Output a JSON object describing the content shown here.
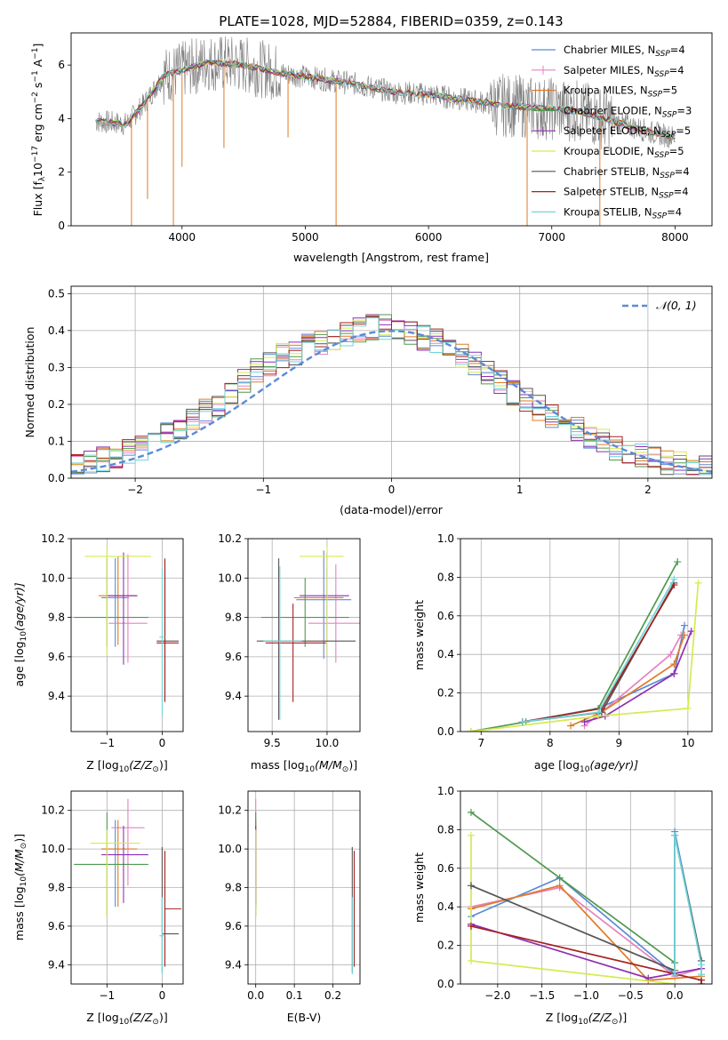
{
  "figure": {
    "title": "PLATE=1028, MJD=52884, FIBERID=0359, z=0.143"
  },
  "models": [
    {
      "name": "Chabrier MILES",
      "nssp": "4",
      "color": "#5b8bd6"
    },
    {
      "name": "Salpeter MILES",
      "nssp": "4",
      "color": "#e583c0"
    },
    {
      "name": "Kroupa MILES",
      "nssp": "5",
      "color": "#e07b24"
    },
    {
      "name": "Chabrier ELODIE",
      "nssp": "3",
      "color": "#4f9a4f"
    },
    {
      "name": "Salpeter ELODIE",
      "nssp": "5",
      "color": "#8e2fb3"
    },
    {
      "name": "Kroupa ELODIE",
      "nssp": "5",
      "color": "#d5ea52"
    },
    {
      "name": "Chabrier STELIB",
      "nssp": "4",
      "color": "#555555"
    },
    {
      "name": "Salpeter STELIB",
      "nssp": "4",
      "color": "#a52121"
    },
    {
      "name": "Kroupa STELIB",
      "nssp": "4",
      "color": "#6fd6d6"
    }
  ],
  "chart_data": [
    {
      "id": "spectrum",
      "type": "line",
      "xlabel": "wavelength [Angstrom, rest frame]",
      "ylabel_main": "Flux [f",
      "ylabel_sub": "λ",
      "ylabel_rest": "10",
      "ylabel_exp": "−17",
      "ylabel_unit": " erg cm",
      "ylabel_exp2": "−2",
      "ylabel_s": " s",
      "ylabel_exp3": "−1",
      "ylabel_A": " A",
      "ylabel_exp4": "−1",
      "ylabel_close": "]",
      "xlim": [
        3100,
        8300
      ],
      "ylim": [
        0,
        7.2
      ],
      "xticks": [
        4000,
        5000,
        6000,
        7000,
        8000
      ],
      "yticks": [
        0,
        2,
        4,
        6
      ],
      "legend_position": "right",
      "continuum_x": [
        3300,
        3550,
        3700,
        3850,
        4000,
        4200,
        4500,
        4800,
        5100,
        5400,
        5700,
        6000,
        6300,
        6600,
        6900,
        7200,
        7500,
        7800,
        8000
      ],
      "continuum_y": [
        3.9,
        3.8,
        4.6,
        5.6,
        5.8,
        6.1,
        6.0,
        5.7,
        5.5,
        5.3,
        5.0,
        4.9,
        4.7,
        4.5,
        4.4,
        4.3,
        3.9,
        3.5,
        3.3
      ],
      "absorption_lines": [
        {
          "x": 3590,
          "y": 0.0
        },
        {
          "x": 3720,
          "y": 1.0
        },
        {
          "x": 3930,
          "y": 0.0
        },
        {
          "x": 4000,
          "y": 2.2
        },
        {
          "x": 4340,
          "y": 2.9
        },
        {
          "x": 4860,
          "y": 3.3
        },
        {
          "x": 5250,
          "y": 0.0
        },
        {
          "x": 6800,
          "y": 0.0
        },
        {
          "x": 7390,
          "y": 0.0
        }
      ]
    },
    {
      "id": "residuals",
      "type": "line",
      "xlabel": "(data-model)/error",
      "ylabel": "Normed distribution",
      "xlim": [
        -2.5,
        2.5
      ],
      "ylim": [
        0,
        0.52
      ],
      "xticks": [
        -2,
        -1,
        0,
        1,
        2
      ],
      "yticks": [
        0.0,
        0.1,
        0.2,
        0.3,
        0.4,
        0.5
      ],
      "legend_label": "𝒩(0, 1)",
      "legend_position": "upper right",
      "gaussian_color": "#5b8bd6",
      "hist_bins": [
        -2.5,
        2.5,
        50
      ],
      "base_profile": [
        0.03,
        0.04,
        0.05,
        0.06,
        0.07,
        0.08,
        0.1,
        0.12,
        0.14,
        0.16,
        0.18,
        0.2,
        0.23,
        0.26,
        0.29,
        0.31,
        0.33,
        0.34,
        0.36,
        0.37,
        0.38,
        0.39,
        0.4,
        0.41,
        0.41,
        0.4,
        0.39,
        0.38,
        0.37,
        0.35,
        0.33,
        0.31,
        0.29,
        0.26,
        0.23,
        0.21,
        0.19,
        0.17,
        0.15,
        0.13,
        0.11,
        0.1,
        0.08,
        0.07,
        0.06,
        0.05,
        0.04,
        0.04,
        0.03,
        0.03
      ]
    },
    {
      "id": "age_vs_Z",
      "type": "scatter",
      "xlabel_main": "Z [log",
      "xlabel_sub": "10",
      "xlabel_rest": "(Z/Z",
      "xlabel_sun": "⊙",
      "xlabel_close": ")]",
      "ylabel_main": "age  [log",
      "ylabel_sub": "10",
      "ylabel_rest": "(age/yr)]",
      "xlim": [
        -1.65,
        0.38
      ],
      "ylim": [
        9.22,
        10.2
      ],
      "xticks": [
        -1,
        0
      ],
      "yticks": [
        9.4,
        9.6,
        9.8,
        10.0,
        10.2
      ],
      "points": [
        {
          "x": -0.85,
          "y": 9.9,
          "xerr": [
            0.25,
            0.25
          ],
          "yerr": [
            0.25,
            0.2
          ]
        },
        {
          "x": -0.62,
          "y": 9.77,
          "xerr": [
            0.35,
            0.35
          ],
          "yerr": [
            0.2,
            0.35
          ]
        },
        {
          "x": -0.8,
          "y": 9.91,
          "xerr": [
            0.35,
            0.35
          ],
          "yerr": [
            0.25,
            0.2
          ]
        },
        {
          "x": -1.0,
          "y": 9.8,
          "xerr": [
            0.6,
            0.75
          ],
          "yerr": [
            0.15,
            0.3
          ]
        },
        {
          "x": -0.7,
          "y": 9.91,
          "xerr": [
            0.3,
            0.25
          ],
          "yerr": [
            0.35,
            0.22
          ]
        },
        {
          "x": -1.0,
          "y": 10.11,
          "xerr": [
            0.4,
            0.8
          ],
          "yerr": [
            0.5,
            0.05
          ]
        },
        {
          "x": 0.05,
          "y": 9.68,
          "xerr": [
            0.15,
            0.25
          ],
          "yerr": [
            0.3,
            0.42
          ]
        },
        {
          "x": 0.05,
          "y": 9.67,
          "xerr": [
            0.15,
            0.25
          ],
          "yerr": [
            0.3,
            0.42
          ]
        },
        {
          "x": 0.0,
          "y": 9.7,
          "xerr": [
            0.05,
            0.05
          ],
          "yerr": [
            0.4,
            0.35
          ]
        }
      ]
    },
    {
      "id": "age_vs_mass",
      "type": "scatter",
      "xlabel_main": "mass [log",
      "xlabel_sub": "10",
      "xlabel_rest": "(M/M",
      "xlabel_sun": "⊙",
      "xlabel_close": ")]",
      "ylabel_main": "",
      "xlim": [
        9.28,
        10.3
      ],
      "ylim": [
        9.22,
        10.2
      ],
      "xticks": [
        9.5,
        10.0
      ],
      "yticks": [
        9.4,
        9.6,
        9.8,
        10.0,
        10.2
      ],
      "points": [
        {
          "x": 9.97,
          "y": 9.89,
          "xerr": [
            0.25,
            0.25
          ],
          "yerr": [
            0.3,
            0.25
          ]
        },
        {
          "x": 10.08,
          "y": 9.77,
          "xerr": [
            0.25,
            0.25
          ],
          "yerr": [
            0.2,
            0.3
          ]
        },
        {
          "x": 10.0,
          "y": 9.9,
          "xerr": [
            0.3,
            0.15
          ],
          "yerr": [
            0.25,
            0.15
          ]
        },
        {
          "x": 9.8,
          "y": 9.8,
          "xerr": [
            0.4,
            0.4
          ],
          "yerr": [
            0.15,
            0.2
          ]
        },
        {
          "x": 10.0,
          "y": 9.91,
          "xerr": [
            0.25,
            0.2
          ],
          "yerr": [
            0.3,
            0.22
          ]
        },
        {
          "x": 10.0,
          "y": 10.11,
          "xerr": [
            0.25,
            0.15
          ],
          "yerr": [
            0.5,
            0.05
          ]
        },
        {
          "x": 9.56,
          "y": 9.68,
          "xerr": [
            0.2,
            0.7
          ],
          "yerr": [
            0.4,
            0.42
          ]
        },
        {
          "x": 9.69,
          "y": 9.67,
          "xerr": [
            0.25,
            0.3
          ],
          "yerr": [
            0.3,
            0.2
          ]
        },
        {
          "x": 9.57,
          "y": 9.68,
          "xerr": [
            0.15,
            0.2
          ],
          "yerr": [
            0.4,
            0.38
          ]
        }
      ]
    },
    {
      "id": "mass_weight_vs_age",
      "type": "line",
      "xlabel_main": "age  [log",
      "xlabel_sub": "10",
      "xlabel_rest": "(age/yr)]",
      "ylabel": "mass weight",
      "xlim": [
        6.7,
        10.35
      ],
      "ylim": [
        0,
        1
      ],
      "xticks": [
        7,
        8,
        9,
        10
      ],
      "yticks": [
        0.0,
        0.2,
        0.4,
        0.6,
        0.8,
        1.0
      ],
      "series": [
        {
          "x": [
            7.6,
            8.7,
            9.8,
            9.95
          ],
          "y": [
            0.05,
            0.12,
            0.3,
            0.55
          ]
        },
        {
          "x": [
            8.5,
            8.75,
            9.75,
            9.9
          ],
          "y": [
            0.03,
            0.1,
            0.4,
            0.5
          ]
        },
        {
          "x": [
            8.3,
            8.75,
            9.8,
            9.95
          ],
          "y": [
            0.03,
            0.1,
            0.35,
            0.5
          ]
        },
        {
          "x": [
            6.85,
            7.65,
            8.7,
            9.85
          ],
          "y": [
            0.0,
            0.05,
            0.12,
            0.88
          ]
        },
        {
          "x": [
            8.5,
            8.8,
            9.8,
            10.05
          ],
          "y": [
            0.05,
            0.08,
            0.3,
            0.52
          ]
        },
        {
          "x": [
            6.85,
            8.7,
            10.0,
            10.15
          ],
          "y": [
            0.0,
            0.08,
            0.12,
            0.77
          ]
        },
        {
          "x": [
            7.6,
            8.75,
            9.8
          ],
          "y": [
            0.05,
            0.1,
            0.77
          ]
        },
        {
          "x": [
            7.6,
            8.75,
            9.8
          ],
          "y": [
            0.05,
            0.12,
            0.76
          ]
        },
        {
          "x": [
            7.6,
            8.7,
            9.8
          ],
          "y": [
            0.05,
            0.1,
            0.79
          ]
        }
      ]
    },
    {
      "id": "mass_vs_Z",
      "type": "scatter",
      "xlabel_main": "Z [log",
      "xlabel_sub": "10",
      "xlabel_rest": "(Z/Z",
      "xlabel_sun": "⊙",
      "xlabel_close": ")]",
      "ylabel_main": "mass [log",
      "ylabel_sub": "10",
      "ylabel_rest": "(M/M",
      "ylabel_sun": "⊙",
      "ylabel_close": ")]",
      "xlim": [
        -1.65,
        0.38
      ],
      "ylim": [
        9.3,
        10.3
      ],
      "xticks": [
        -1,
        0
      ],
      "yticks": [
        9.4,
        9.6,
        9.8,
        10.0,
        10.2
      ],
      "points": [
        {
          "x": -0.85,
          "y": 10.0,
          "xerr": [
            0.25,
            0.25
          ],
          "yerr": [
            0.3,
            0.15
          ]
        },
        {
          "x": -0.62,
          "y": 10.11,
          "xerr": [
            0.3,
            0.3
          ],
          "yerr": [
            0.3,
            0.15
          ]
        },
        {
          "x": -0.8,
          "y": 10.0,
          "xerr": [
            0.3,
            0.35
          ],
          "yerr": [
            0.3,
            0.15
          ]
        },
        {
          "x": -1.0,
          "y": 9.92,
          "xerr": [
            0.6,
            0.75
          ],
          "yerr": [
            0.27,
            0.27
          ]
        },
        {
          "x": -0.7,
          "y": 9.97,
          "xerr": [
            0.4,
            0.45
          ],
          "yerr": [
            0.25,
            0.15
          ]
        },
        {
          "x": -1.0,
          "y": 10.03,
          "xerr": [
            0.3,
            0.6
          ],
          "yerr": [
            0.38,
            0.07
          ]
        },
        {
          "x": 0.0,
          "y": 9.56,
          "xerr": [
            0.0,
            0.3
          ],
          "yerr": [
            0.2,
            0.45
          ]
        },
        {
          "x": 0.05,
          "y": 9.69,
          "xerr": [
            0.0,
            0.3
          ],
          "yerr": [
            0.3,
            0.3
          ]
        },
        {
          "x": 0.0,
          "y": 9.55,
          "xerr": [
            0.05,
            0.05
          ],
          "yerr": [
            0.2,
            0.2
          ]
        }
      ]
    },
    {
      "id": "mass_vs_ebv",
      "type": "scatter",
      "xlabel": "E(B-V)",
      "xlim": [
        -0.02,
        0.27
      ],
      "ylim": [
        9.3,
        10.3
      ],
      "xticks": [
        0.0,
        0.1,
        0.2
      ],
      "yticks": [
        9.4,
        9.6,
        9.8,
        10.0,
        10.2
      ],
      "points": [
        {
          "x": 0.0,
          "y": 10.0,
          "xerr": [
            0,
            0
          ],
          "yerr": [
            0.3,
            0.15
          ]
        },
        {
          "x": 0.0,
          "y": 10.11,
          "xerr": [
            0,
            0
          ],
          "yerr": [
            0.3,
            0.15
          ]
        },
        {
          "x": 0.0,
          "y": 10.0,
          "xerr": [
            0,
            0
          ],
          "yerr": [
            0.3,
            0.15
          ]
        },
        {
          "x": 0.0,
          "y": 9.92,
          "xerr": [
            0,
            0
          ],
          "yerr": [
            0.27,
            0.27
          ]
        },
        {
          "x": 0.0,
          "y": 9.97,
          "xerr": [
            0,
            0
          ],
          "yerr": [
            0.25,
            0.15
          ]
        },
        {
          "x": 0.0,
          "y": 10.03,
          "xerr": [
            0,
            0
          ],
          "yerr": [
            0.38,
            0.07
          ]
        },
        {
          "x": 0.25,
          "y": 9.56,
          "xerr": [
            0,
            0
          ],
          "yerr": [
            0.2,
            0.45
          ]
        },
        {
          "x": 0.255,
          "y": 9.69,
          "xerr": [
            0,
            0
          ],
          "yerr": [
            0.3,
            0.3
          ]
        },
        {
          "x": 0.25,
          "y": 9.55,
          "xerr": [
            0,
            0
          ],
          "yerr": [
            0.2,
            0.2
          ]
        }
      ]
    },
    {
      "id": "mass_weight_vs_Z",
      "type": "line",
      "xlabel_main": "Z [log",
      "xlabel_sub": "10",
      "xlabel_rest": "(Z/Z",
      "xlabel_sun": "⊙",
      "xlabel_close": ")]",
      "ylabel": "mass weight",
      "xlim": [
        -2.42,
        0.42
      ],
      "ylim": [
        0,
        1
      ],
      "xticks": [
        -2.0,
        -1.5,
        -1.0,
        -0.5,
        0.0
      ],
      "xticklabels": [
        "−2.0",
        "−1.5",
        "−1.0",
        "−0.5",
        "0.0"
      ],
      "yticks": [
        0.0,
        0.2,
        0.4,
        0.6,
        0.8,
        1.0
      ],
      "series": [
        {
          "x": [
            -2.3,
            -1.3,
            0.0,
            0.0,
            0.3
          ],
          "y": [
            0.35,
            0.55,
            0.05,
            0.79,
            0.12
          ]
        },
        {
          "x": [
            -2.3,
            -1.3,
            0.0,
            0.3
          ],
          "y": [
            0.4,
            0.5,
            0.04,
            0.08
          ]
        },
        {
          "x": [
            -2.3,
            -1.3,
            -0.3,
            0.3,
            0.3
          ],
          "y": [
            0.39,
            0.51,
            0.02,
            0.04,
            0.0
          ]
        },
        {
          "x": [
            -2.3,
            -1.3,
            0.0
          ],
          "y": [
            0.89,
            0.55,
            0.11
          ]
        },
        {
          "x": [
            -2.3,
            -0.3,
            0.3
          ],
          "y": [
            0.31,
            0.03,
            0.08
          ]
        },
        {
          "x": [
            -2.3,
            -2.3,
            0.0
          ],
          "y": [
            0.77,
            0.12,
            0.0
          ]
        },
        {
          "x": [
            -2.3,
            0.0,
            0.0,
            0.3
          ],
          "y": [
            0.51,
            0.07,
            0.77,
            0.12
          ]
        },
        {
          "x": [
            -2.3,
            0.3,
            0.3
          ],
          "y": [
            0.3,
            0.02,
            0.0
          ]
        },
        {
          "x": [
            0.0,
            0.0,
            0.3,
            0.3
          ],
          "y": [
            0.05,
            0.77,
            0.1,
            0.05
          ]
        }
      ]
    }
  ]
}
